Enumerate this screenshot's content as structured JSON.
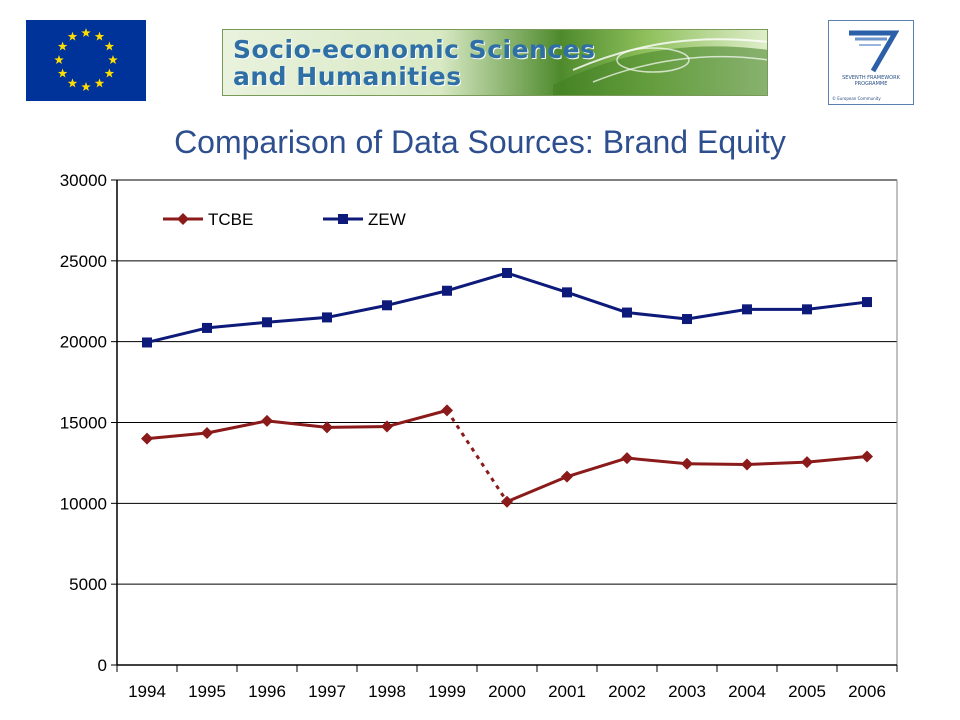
{
  "header": {
    "eu_flag_icon": "eu-flag-icon",
    "banner_line1": "Socio-economic Sciences",
    "banner_line2": "and Humanities",
    "fp7_icon": "fp7-logo-icon",
    "fp7_caption_line1": "SEVENTH FRAMEWORK",
    "fp7_caption_line2": "PROGRAMME",
    "fp7_copyright": "© European Community"
  },
  "colors": {
    "title": "#2e4f8f",
    "tcbe": "#8b1a1a",
    "zew": "#0d1a7a",
    "eu_blue": "#003399",
    "eu_star": "#ffdd00"
  },
  "chart_data": {
    "type": "line",
    "title": "Comparison of Data Sources: Brand Equity",
    "xlabel": "",
    "ylabel": "",
    "categories": [
      "1994",
      "1995",
      "1996",
      "1997",
      "1998",
      "1999",
      "2000",
      "2001",
      "2002",
      "2003",
      "2004",
      "2005",
      "2006"
    ],
    "ylim": [
      0,
      30000
    ],
    "yticks": [
      0,
      5000,
      10000,
      15000,
      20000,
      25000,
      30000
    ],
    "grid": "horizontal",
    "legend": "top-left",
    "series": [
      {
        "name": "TCBE",
        "marker": "diamond",
        "values": [
          14000,
          14350,
          15100,
          14700,
          14750,
          15750,
          10100,
          11650,
          12800,
          12450,
          12400,
          12550,
          12900
        ],
        "dotted_segment": [
          "1999",
          "2000"
        ]
      },
      {
        "name": "ZEW",
        "marker": "square",
        "values": [
          19950,
          20850,
          21200,
          21500,
          22250,
          23150,
          24250,
          23050,
          21800,
          21400,
          22000,
          22000,
          22450
        ]
      }
    ]
  }
}
